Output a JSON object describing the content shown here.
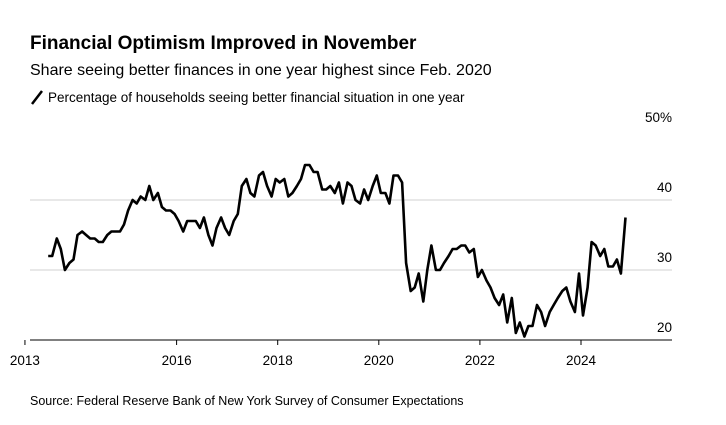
{
  "chart_data": {
    "type": "line",
    "title": "Financial Optimism Improved in November",
    "subtitle": "Share seeing better finances in one year highest since Feb. 2020",
    "source": "Source: Federal Reserve Bank of New York Survey of Consumer Expectations",
    "series": [
      {
        "name": "Percentage of households seeing better financial situation in one year",
        "color": "#000000",
        "values": [
          32,
          32,
          34.5,
          33,
          30,
          31,
          31.5,
          35,
          35.5,
          35,
          34.5,
          34.5,
          34,
          34,
          35,
          35.5,
          35.5,
          35.5,
          36.5,
          38.5,
          40,
          39.5,
          40.5,
          40,
          42,
          40,
          41,
          39,
          38.5,
          38.5,
          38,
          37,
          35.5,
          37,
          37,
          37,
          36,
          37.5,
          35,
          33.5,
          36,
          37.5,
          36,
          35,
          37,
          38,
          42,
          43,
          41,
          40.5,
          43.5,
          44,
          42,
          40.5,
          43,
          42.5,
          43,
          40.5,
          41,
          42,
          43,
          45,
          45,
          44,
          44,
          41.5,
          41.5,
          42,
          41,
          42.5,
          39.5,
          42.5,
          42,
          40,
          39.5,
          41.5,
          40,
          42,
          43.5,
          41,
          41,
          39.5,
          43.5,
          43.5,
          42.5,
          31,
          27,
          27.5,
          29.5,
          25.5,
          30,
          33.5,
          30,
          30,
          31,
          32,
          33,
          33,
          33.5,
          33.5,
          32.5,
          33,
          29,
          30,
          28.5,
          27.5,
          26,
          25,
          26.5,
          22.5,
          26,
          21,
          22.5,
          20.5,
          22,
          22,
          25,
          24,
          22,
          24,
          25,
          26,
          27,
          27.5,
          25.5,
          24,
          29.5,
          23.5,
          27.5,
          34,
          33.5,
          32,
          33,
          30.5,
          30.5,
          31.5,
          29.5,
          37.5
        ]
      }
    ],
    "x": [
      2013.46,
      2013.54,
      2013.63,
      2013.71,
      2013.79,
      2013.88,
      2013.96,
      2014.04,
      2014.13,
      2014.21,
      2014.29,
      2014.38,
      2014.46,
      2014.54,
      2014.63,
      2014.71,
      2014.79,
      2014.88,
      2014.96,
      2015.04,
      2015.13,
      2015.21,
      2015.29,
      2015.38,
      2015.46,
      2015.54,
      2015.63,
      2015.71,
      2015.79,
      2015.88,
      2015.96,
      2016.04,
      2016.13,
      2016.21,
      2016.29,
      2016.38,
      2016.46,
      2016.54,
      2016.63,
      2016.71,
      2016.79,
      2016.88,
      2016.96,
      2017.04,
      2017.13,
      2017.21,
      2017.29,
      2017.38,
      2017.46,
      2017.54,
      2017.63,
      2017.71,
      2017.79,
      2017.88,
      2017.96,
      2018.04,
      2018.13,
      2018.21,
      2018.29,
      2018.38,
      2018.46,
      2018.54,
      2018.63,
      2018.71,
      2018.79,
      2018.88,
      2018.96,
      2019.04,
      2019.13,
      2019.21,
      2019.29,
      2019.38,
      2019.46,
      2019.54,
      2019.63,
      2019.71,
      2019.79,
      2019.88,
      2019.96,
      2020.04,
      2020.13,
      2020.21,
      2020.29,
      2020.38,
      2020.46,
      2020.54,
      2020.63,
      2020.71,
      2020.79,
      2020.88,
      2020.96,
      2021.04,
      2021.13,
      2021.21,
      2021.29,
      2021.38,
      2021.46,
      2021.54,
      2021.63,
      2021.71,
      2021.79,
      2021.88,
      2021.96,
      2022.04,
      2022.13,
      2022.21,
      2022.29,
      2022.38,
      2022.46,
      2022.54,
      2022.63,
      2022.71,
      2022.79,
      2022.88,
      2022.96,
      2023.04,
      2023.13,
      2023.21,
      2023.29,
      2023.38,
      2023.46,
      2023.54,
      2023.63,
      2023.71,
      2023.79,
      2023.88,
      2023.96,
      2024.04,
      2024.13,
      2024.21,
      2024.29,
      2024.38,
      2024.46,
      2024.54,
      2024.63,
      2024.71,
      2024.79,
      2024.88
    ],
    "xlim": [
      2013.1,
      2025.8
    ],
    "xticks": [
      2013,
      2016,
      2018,
      2020,
      2022,
      2024
    ],
    "ylim": [
      20,
      50
    ],
    "yticks": [
      20,
      30,
      40,
      {
        "value": 50,
        "label": "50%"
      }
    ],
    "grid": true
  }
}
